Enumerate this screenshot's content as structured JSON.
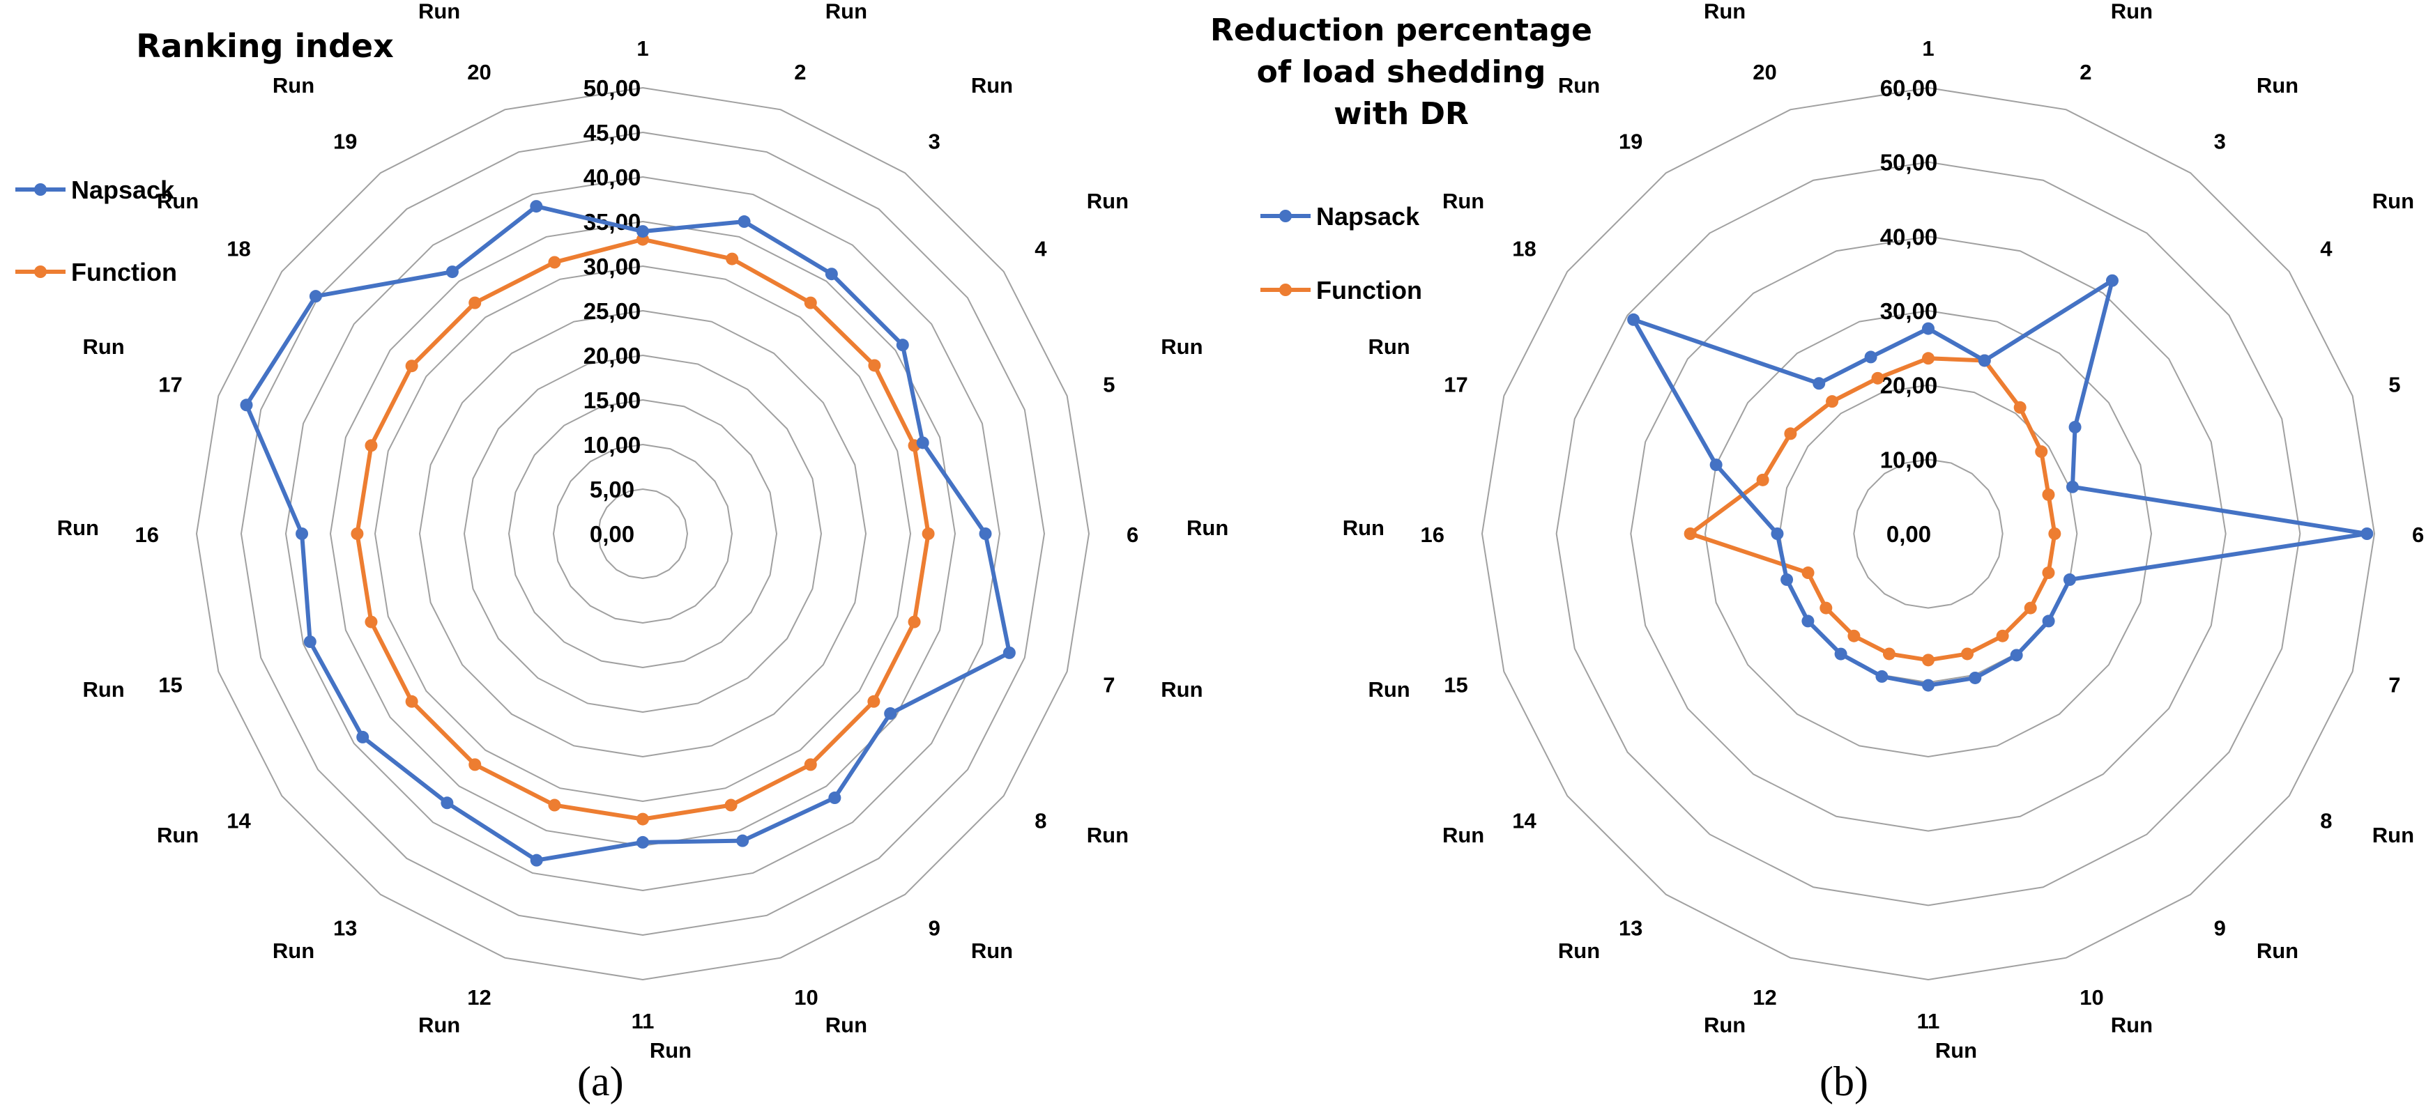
{
  "colors": {
    "napsack": "#4472C4",
    "function": "#ED7D31",
    "grid": "#A0A0A0"
  },
  "chart_data": [
    {
      "type": "radar",
      "panel_label": "(a)",
      "title": [
        "Ranking index"
      ],
      "categories": [
        "Run 1",
        "Run 2",
        "Run 3",
        "Run 4",
        "Run 5",
        "Run 6",
        "Run 7",
        "Run 8",
        "Run 9",
        "Run 10",
        "Run 11",
        "Run 12",
        "Run 13",
        "Run 14",
        "Run 15",
        "Run 16",
        "Run 17",
        "Run 18",
        "Run 19",
        "Run 20"
      ],
      "cat_prefix": "Run",
      "cat_numbers": [
        "1",
        "2",
        "3",
        "4",
        "5",
        "6",
        "7",
        "8",
        "9",
        "10",
        "11",
        "12",
        "13",
        "14",
        "15",
        "16",
        "17",
        "18",
        "19",
        "20"
      ],
      "ticks": [
        "0,00",
        "5,00",
        "10,00",
        "15,00",
        "20,00",
        "25,00",
        "30,00",
        "35,00",
        "40,00",
        "45,00",
        "50,00"
      ],
      "rlim": [
        0,
        50
      ],
      "legend": [
        "Napsack",
        "Function"
      ],
      "series": [
        {
          "name": "Napsack",
          "values": [
            33.9,
            36.8,
            36.0,
            36.0,
            33.0,
            38.4,
            43.2,
            34.3,
            36.6,
            36.2,
            34.6,
            38.5,
            37.3,
            38.8,
            39.2,
            38.2,
            46.7,
            45.3,
            36.3,
            38.6
          ]
        },
        {
          "name": "Function",
          "values": [
            33.0,
            32.4,
            32.0,
            32.1,
            32.0,
            32.0,
            32.0,
            32.0,
            32.0,
            32.0,
            32.0,
            32.0,
            32.0,
            32.0,
            32.0,
            32.0,
            32.0,
            32.0,
            32.0,
            32.0
          ]
        }
      ]
    },
    {
      "type": "radar",
      "panel_label": "(b)",
      "title": [
        "Reduction percentage",
        "of load shedding",
        "with DR"
      ],
      "categories": [
        "Run 1",
        "Run 2",
        "Run 3",
        "Run 4",
        "Run 5",
        "Run 6",
        "Run 7",
        "Run 8",
        "Run 9",
        "Run 10",
        "Run 11",
        "Run 12",
        "Run 13",
        "Run 14",
        "Run 15",
        "Run 16",
        "Run 17",
        "Run 18",
        "Run 19",
        "Run 20"
      ],
      "cat_prefix": "Run",
      "cat_numbers": [
        "1",
        "2",
        "3",
        "4",
        "5",
        "6",
        "7",
        "8",
        "9",
        "10",
        "11",
        "12",
        "13",
        "14",
        "15",
        "16",
        "17",
        "18",
        "19",
        "20"
      ],
      "ticks": [
        "0,00",
        "10,00",
        "20,00",
        "30,00",
        "40,00",
        "50,00",
        "60,00"
      ],
      "rlim": [
        0,
        60
      ],
      "legend": [
        "Napsack",
        "Function"
      ],
      "series": [
        {
          "name": "Napsack",
          "values": [
            27.6,
            24.5,
            42.1,
            24.4,
            20.4,
            59.0,
            20.0,
            20.0,
            20.2,
            20.4,
            20.4,
            20.2,
            20.0,
            20.0,
            20.0,
            20.3,
            30.0,
            49.0,
            25.0,
            25.0
          ]
        },
        {
          "name": "Function",
          "values": [
            23.6,
            24.5,
            21.0,
            18.8,
            17.0,
            17.0,
            17.0,
            17.0,
            17.0,
            17.0,
            17.0,
            17.0,
            17.0,
            17.0,
            17.0,
            32.0,
            23.4,
            22.9,
            22.0,
            22.0
          ]
        }
      ]
    }
  ]
}
